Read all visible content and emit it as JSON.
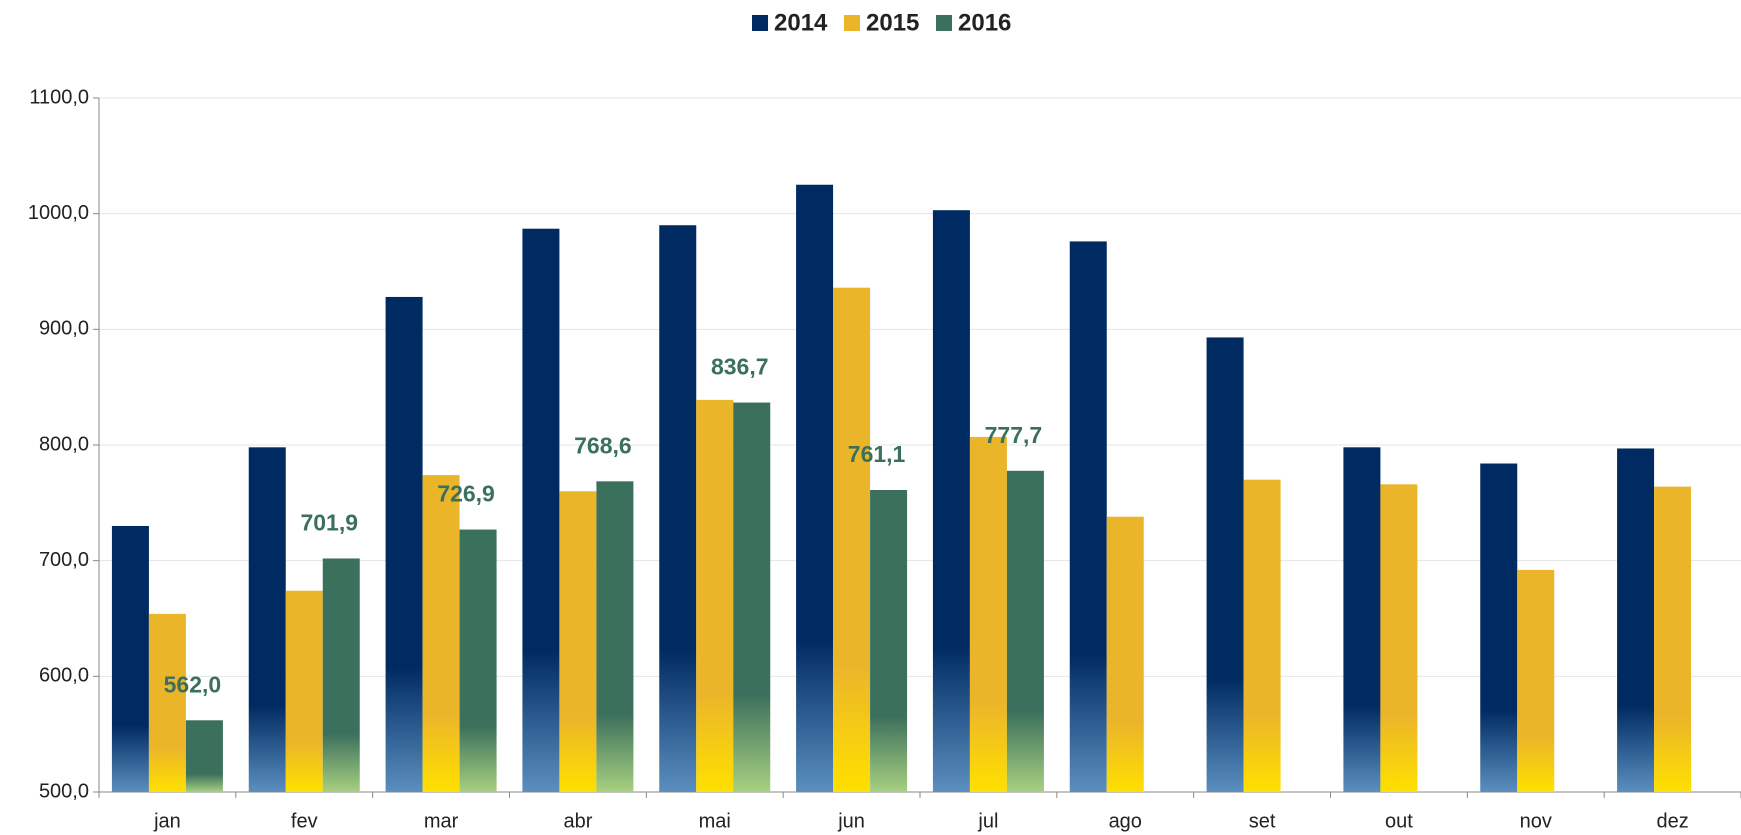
{
  "chart_data": {
    "type": "bar",
    "categories": [
      "jan",
      "fev",
      "mar",
      "abr",
      "mai",
      "jun",
      "jul",
      "ago",
      "set",
      "out",
      "nov",
      "dez"
    ],
    "series": [
      {
        "name": "2014",
        "color": "#002b62",
        "values": [
          730,
          798,
          928,
          987,
          990,
          1025,
          1003,
          976,
          893,
          798,
          784,
          797
        ]
      },
      {
        "name": "2015",
        "color": "#ebb52a",
        "values": [
          654,
          674,
          774,
          760,
          839,
          936,
          807,
          738,
          770,
          766,
          692,
          764
        ]
      },
      {
        "name": "2016",
        "color": "#3b705c",
        "values": [
          562.0,
          701.9,
          726.9,
          768.6,
          836.7,
          761.1,
          777.7,
          null,
          null,
          null,
          null,
          null
        ],
        "value_labels": [
          "562,0",
          "701,9",
          "726,9",
          "768,6",
          "836,7",
          "761,1",
          "777,7",
          null,
          null,
          null,
          null,
          null
        ]
      }
    ],
    "ylim": [
      500,
      1100
    ],
    "yticks": [
      {
        "value": 500,
        "label": "500,0"
      },
      {
        "value": 600,
        "label": "600,0"
      },
      {
        "value": 700,
        "label": "700,0"
      },
      {
        "value": 800,
        "label": "800,0"
      },
      {
        "value": 900,
        "label": "900,0"
      },
      {
        "value": 1000,
        "label": "1000,0"
      },
      {
        "value": 1100,
        "label": "1100,0"
      }
    ],
    "grid": true,
    "legend": "top"
  }
}
